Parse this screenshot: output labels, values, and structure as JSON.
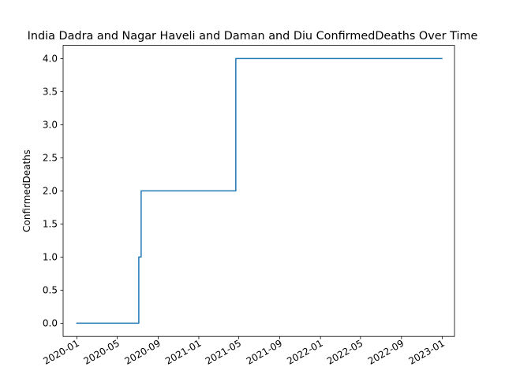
{
  "chart_data": {
    "type": "line",
    "title": "India Dadra and Nagar Haveli and Daman and Diu ConfirmedDeaths Over Time",
    "xlabel": "",
    "ylabel": "ConfirmedDeaths",
    "x_type": "date",
    "xlim": [
      "2019-11-21",
      "2023-02-07"
    ],
    "ylim": [
      -0.2,
      4.2
    ],
    "grid": false,
    "step": "post",
    "series": [
      {
        "color": "#1f77b4",
        "points": [
          {
            "x": "2020-01-01",
            "y": 0
          },
          {
            "x": "2020-07-05",
            "y": 1
          },
          {
            "x": "2020-07-12",
            "y": 2
          },
          {
            "x": "2021-04-22",
            "y": 4
          },
          {
            "x": "2022-12-31",
            "y": 4
          }
        ]
      }
    ],
    "x_ticks": [
      {
        "value": "2020-01-01",
        "label": "2020-01"
      },
      {
        "value": "2020-05-01",
        "label": "2020-05"
      },
      {
        "value": "2020-09-01",
        "label": "2020-09"
      },
      {
        "value": "2021-01-01",
        "label": "2021-01"
      },
      {
        "value": "2021-05-01",
        "label": "2021-05"
      },
      {
        "value": "2021-09-01",
        "label": "2021-09"
      },
      {
        "value": "2022-01-01",
        "label": "2022-01"
      },
      {
        "value": "2022-05-01",
        "label": "2022-05"
      },
      {
        "value": "2022-09-01",
        "label": "2022-09"
      },
      {
        "value": "2023-01-01",
        "label": "2023-01"
      }
    ],
    "y_ticks": [
      {
        "value": 0.0,
        "label": "0.0"
      },
      {
        "value": 0.5,
        "label": "0.5"
      },
      {
        "value": 1.0,
        "label": "1.0"
      },
      {
        "value": 1.5,
        "label": "1.5"
      },
      {
        "value": 2.0,
        "label": "2.0"
      },
      {
        "value": 2.5,
        "label": "2.5"
      },
      {
        "value": 3.0,
        "label": "3.0"
      },
      {
        "value": 3.5,
        "label": "3.5"
      },
      {
        "value": 4.0,
        "label": "4.0"
      }
    ]
  }
}
